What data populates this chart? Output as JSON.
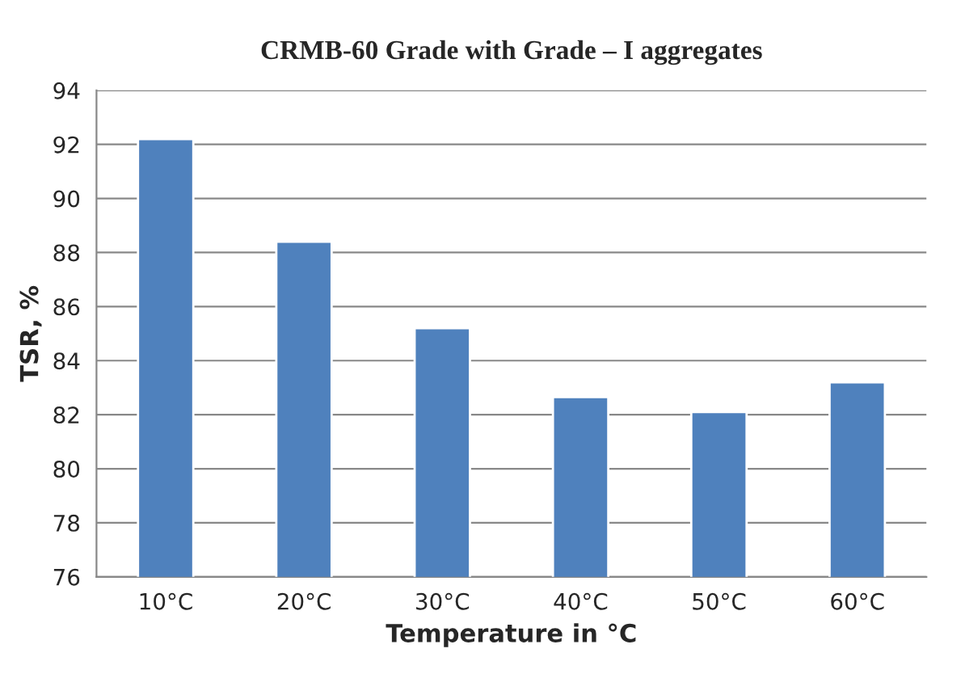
{
  "chart_data": {
    "type": "bar",
    "title": "CRMB-60 Grade with Grade – I aggregates",
    "xlabel": "Temperature in °C",
    "ylabel": "TSR, %",
    "categories": [
      "10°C",
      "20°C",
      "30°C",
      "40°C",
      "50°C",
      "60°C"
    ],
    "series": [
      {
        "color": "#4f81bd",
        "values": [
          92.2,
          88.4,
          85.2,
          82.65,
          82.1,
          83.2
        ]
      }
    ],
    "ylim": [
      76,
      94
    ],
    "yticks": [
      76,
      78,
      80,
      82,
      84,
      86,
      88,
      90,
      92,
      94
    ],
    "grid": "y",
    "legend": false
  }
}
